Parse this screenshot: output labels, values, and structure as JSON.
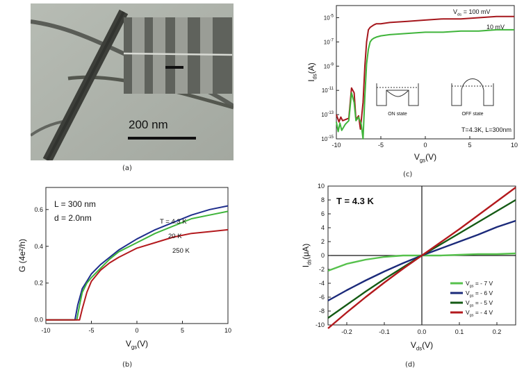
{
  "captions": {
    "a": "(a)",
    "b": "(b)",
    "c": "(c)",
    "d": "(d)"
  },
  "panel_a": {
    "scale_label": "200 nm",
    "colors": {
      "background": "#aeb3ac",
      "wire": "#4a4c48",
      "inset": "#5c5f5a"
    }
  },
  "chart_data": [
    {
      "id": "b",
      "type": "line",
      "xlabel": "V",
      "xlabel_sub": "gs",
      "xlabel_unit": "(V)",
      "ylabel": "G (4e²/h)",
      "xlim": [
        -10,
        10
      ],
      "ylim": [
        -0.02,
        0.72
      ],
      "xticks": [
        -10,
        -5,
        0,
        5,
        10
      ],
      "yticks": [
        0.0,
        0.2,
        0.4,
        0.6
      ],
      "ytick_labels": [
        "0.0",
        "0.2",
        "0.4",
        "0.6"
      ],
      "annotations": [
        "L = 300 nm",
        "d = 2.0nm"
      ],
      "series": [
        {
          "name": "T = 4.3 K",
          "color": "#1e2d8c",
          "x": [
            -10,
            -6.8,
            -6.5,
            -6.0,
            -5.5,
            -5.0,
            -4.0,
            -3.0,
            -2.0,
            0,
            2,
            4,
            6,
            8,
            10
          ],
          "y": [
            0.0,
            0.0,
            0.08,
            0.17,
            0.21,
            0.25,
            0.3,
            0.34,
            0.38,
            0.44,
            0.49,
            0.53,
            0.57,
            0.6,
            0.62
          ]
        },
        {
          "name": "20 K",
          "color": "#3fb43a",
          "x": [
            -10,
            -6.6,
            -6.3,
            -6.0,
            -5.5,
            -5.0,
            -4.0,
            -3.0,
            -2.0,
            0,
            2,
            4,
            6,
            8,
            10
          ],
          "y": [
            0.0,
            0.0,
            0.08,
            0.15,
            0.2,
            0.23,
            0.28,
            0.33,
            0.37,
            0.42,
            0.47,
            0.51,
            0.55,
            0.57,
            0.59
          ]
        },
        {
          "name": "250 K",
          "color": "#b3191d",
          "x": [
            -10,
            -6.3,
            -6.0,
            -5.5,
            -5.0,
            -4.0,
            -3.0,
            -2.0,
            0,
            2,
            4,
            6,
            8,
            10
          ],
          "y": [
            0.0,
            0.0,
            0.06,
            0.15,
            0.21,
            0.27,
            0.31,
            0.34,
            0.39,
            0.42,
            0.45,
            0.47,
            0.48,
            0.49
          ]
        }
      ]
    },
    {
      "id": "c",
      "type": "line",
      "scale": "log-y",
      "xlabel": "V",
      "xlabel_sub": "gs",
      "xlabel_unit": "(V)",
      "ylabel": "I",
      "ylabel_sub": "ds",
      "ylabel_unit": "(A)",
      "xlim": [
        -10,
        10
      ],
      "ylim_exp": [
        -15,
        -4
      ],
      "xticks": [
        -10,
        -5,
        0,
        5,
        10
      ],
      "ytick_exps": [
        -15,
        -13,
        -11,
        -9,
        -7,
        -5
      ],
      "ytick_base": "10",
      "annotations": [
        "T=4.3K, L=300nm",
        "ON state",
        "OFF state"
      ],
      "series": [
        {
          "name": "V_ds = 100 mV",
          "label_main": "V",
          "label_sub": "ds",
          "label_tail": " = 100 mV",
          "color": "#a5161c",
          "x": [
            -10,
            -9.7,
            -9.5,
            -9.3,
            -8.6,
            -8.3,
            -8.0,
            -7.8,
            -7.5,
            -7.3,
            -7.0,
            -6.8,
            -6.6,
            -6.4,
            -6.2,
            -6.0,
            -5.8,
            -5.5,
            -5.0,
            -4.0,
            -2.0,
            0,
            2,
            4,
            6,
            8,
            10
          ],
          "y": [
            -13,
            -13.6,
            -13.2,
            -13.5,
            -13.3,
            -10.8,
            -11.2,
            -13.4,
            -13.1,
            -14.2,
            -12.0,
            -9.0,
            -7.0,
            -6.0,
            -5.8,
            -5.7,
            -5.6,
            -5.5,
            -5.5,
            -5.4,
            -5.3,
            -5.2,
            -5.1,
            -5.1,
            -5.0,
            -4.9,
            -4.9
          ]
        },
        {
          "name": "10 mV",
          "label_main": "10 mV",
          "color": "#3fb43a",
          "x": [
            -10,
            -9.8,
            -9.6,
            -9.4,
            -9.0,
            -8.6,
            -8.3,
            -8.0,
            -7.8,
            -7.5,
            -7.2,
            -7.0,
            -6.8,
            -6.6,
            -6.4,
            -6.2,
            -6.0,
            -5.8,
            -5.5,
            -5.0,
            -4.0,
            -2.0,
            0,
            2,
            4,
            6,
            8,
            10
          ],
          "y": [
            -13.6,
            -14.4,
            -13.7,
            -14.3,
            -13.8,
            -13.5,
            -11.2,
            -12.0,
            -13.5,
            -13.2,
            -13.8,
            -15.0,
            -11.5,
            -8.8,
            -7.6,
            -7.0,
            -6.8,
            -6.7,
            -6.6,
            -6.5,
            -6.4,
            -6.3,
            -6.2,
            -6.2,
            -6.1,
            -6.1,
            -6.0,
            -6.0
          ]
        }
      ]
    },
    {
      "id": "d",
      "type": "line",
      "xlabel": "V",
      "xlabel_sub": "ds",
      "xlabel_unit": "(V)",
      "ylabel": "I",
      "ylabel_sub": "ds",
      "ylabel_unit": "(μA)",
      "xlim": [
        -0.25,
        0.25
      ],
      "ylim": [
        -10,
        10
      ],
      "xticks": [
        -0.2,
        -0.1,
        0.0,
        0.1,
        0.2
      ],
      "xtick_labels": [
        "-0.2",
        "-0.1",
        "0.0",
        "0.1",
        "0.2"
      ],
      "yticks": [
        -10,
        -8,
        -6,
        -4,
        -2,
        0,
        2,
        4,
        6,
        8,
        10
      ],
      "annotations": [
        "T = 4.3 K"
      ],
      "series": [
        {
          "name": "V_gs = -7 V",
          "label_main": "V",
          "label_sub": "gs",
          "label_tail": " = - 7 V",
          "color": "#56c14c",
          "x": [
            -0.25,
            -0.2,
            -0.15,
            -0.1,
            -0.05,
            0,
            0.05,
            0.1,
            0.15,
            0.2,
            0.25
          ],
          "y": [
            -2.2,
            -1.2,
            -0.6,
            -0.2,
            0.0,
            0.0,
            0.0,
            0.1,
            0.2,
            0.2,
            0.3
          ]
        },
        {
          "name": "V_gs = -6 V",
          "label_main": "V",
          "label_sub": "gs",
          "label_tail": " = - 6 V",
          "color": "#1b2a7a",
          "x": [
            -0.25,
            -0.2,
            -0.15,
            -0.1,
            -0.05,
            0,
            0.05,
            0.1,
            0.15,
            0.2,
            0.25
          ],
          "y": [
            -6.5,
            -5.0,
            -3.6,
            -2.3,
            -1.1,
            0.0,
            1.0,
            2.0,
            3.0,
            4.1,
            5.0
          ]
        },
        {
          "name": "V_gs = -5 V",
          "label_main": "V",
          "label_sub": "gs",
          "label_tail": " = - 5 V",
          "color": "#145a14",
          "x": [
            -0.25,
            -0.2,
            -0.15,
            -0.1,
            -0.05,
            0,
            0.05,
            0.1,
            0.15,
            0.2,
            0.25
          ],
          "y": [
            -9.0,
            -7.1,
            -5.2,
            -3.4,
            -1.7,
            0.0,
            1.6,
            3.2,
            4.8,
            6.4,
            8.0
          ]
        },
        {
          "name": "V_gs = -4 V",
          "label_main": "V",
          "label_sub": "gs",
          "label_tail": " = - 4 V",
          "color": "#b3191d",
          "x": [
            -0.25,
            -0.2,
            -0.15,
            -0.1,
            -0.05,
            0,
            0.05,
            0.1,
            0.15,
            0.2,
            0.25
          ],
          "y": [
            -10.5,
            -8.2,
            -6.0,
            -3.9,
            -1.9,
            0.0,
            1.9,
            3.8,
            5.8,
            7.8,
            9.8
          ]
        }
      ]
    }
  ]
}
